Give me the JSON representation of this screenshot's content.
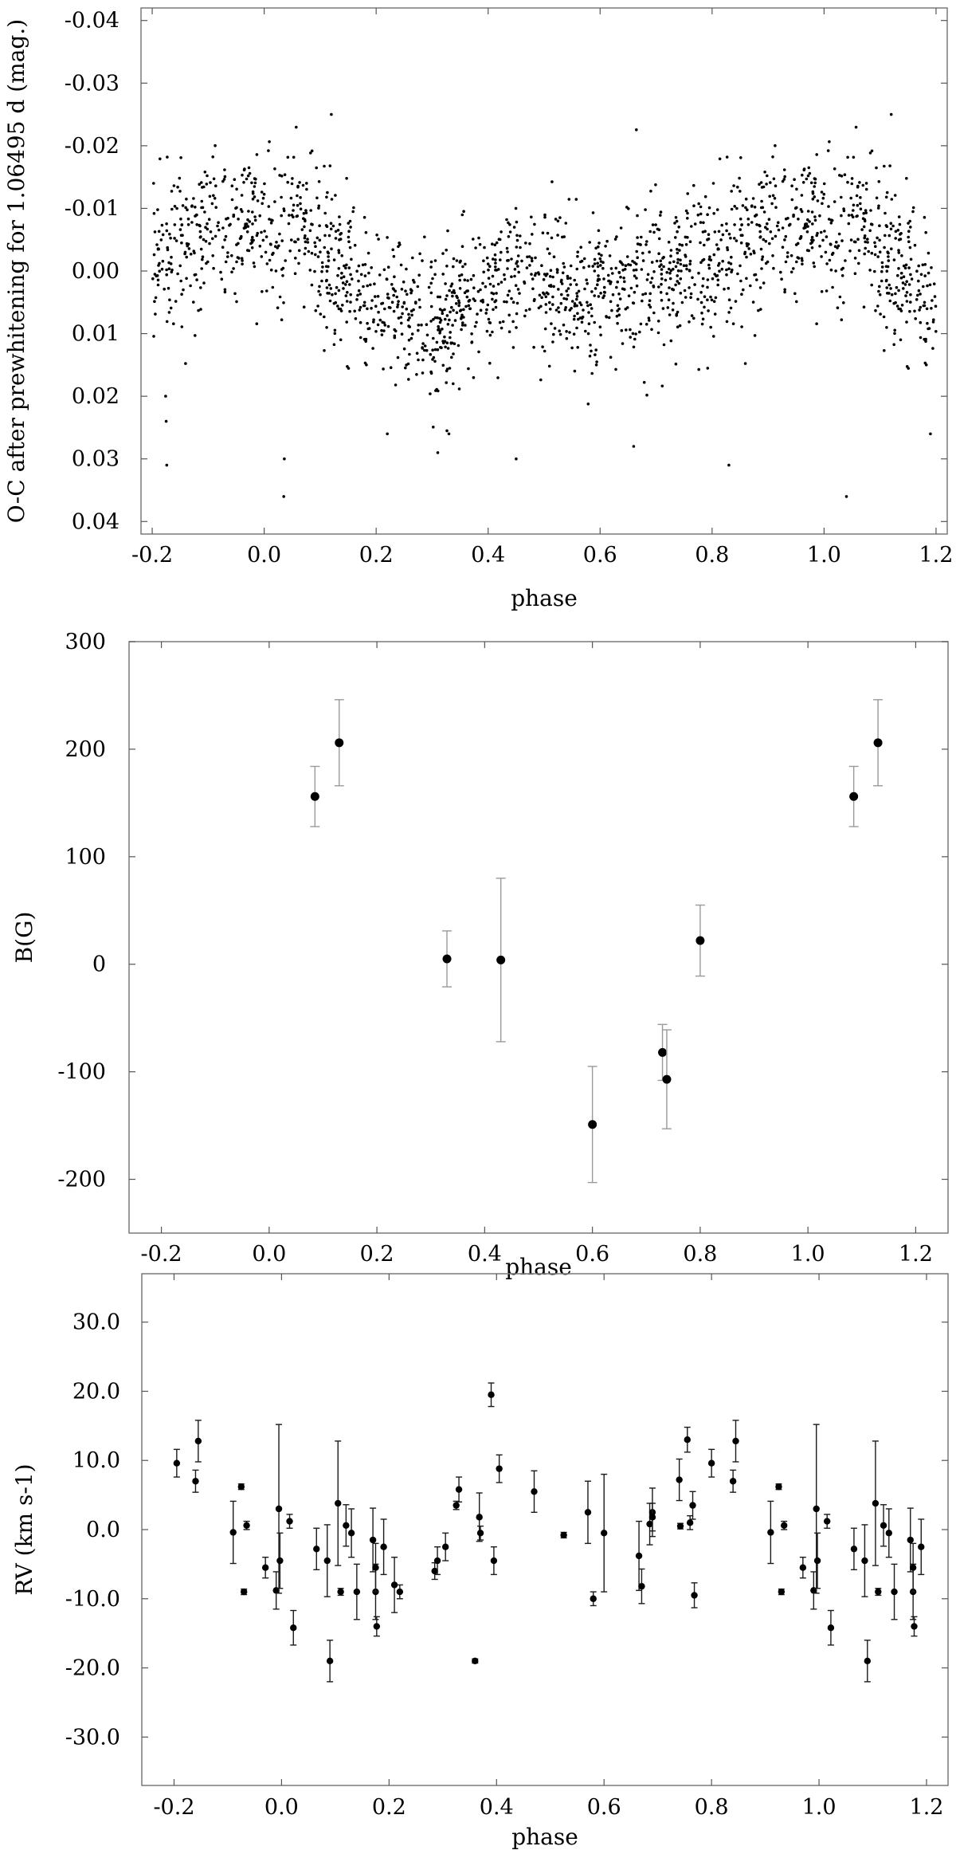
{
  "colors": {
    "points": "#000000",
    "frame": "#7a7a7a",
    "errorbar_gray": "#9a9a9a",
    "errorbar_dark": "#1a1a1a"
  },
  "chart_data": [
    {
      "type": "scatter",
      "xlabel": "phase",
      "ylabel": "O-C after prewhitening for 1.06495 d (mag.)",
      "xlim": [
        -0.22,
        1.22
      ],
      "ylim": [
        0.042,
        -0.042
      ],
      "y_inverted": true,
      "xticks": [
        -0.2,
        0.0,
        0.2,
        0.4,
        0.6,
        0.8,
        1.0,
        1.2
      ],
      "xtick_labels": [
        "-0.2",
        "0.0",
        "0.2",
        "0.4",
        "0.6",
        "0.8",
        "1.0",
        "1.2"
      ],
      "yticks": [
        -0.04,
        -0.03,
        -0.02,
        -0.01,
        0.0,
        0.01,
        0.02,
        0.03,
        0.04
      ],
      "ytick_labels": [
        "-0.04",
        "-0.03",
        "-0.02",
        "-0.01",
        "0.00",
        "0.01",
        "0.02",
        "0.03",
        "0.04"
      ],
      "grid": false,
      "phase_repeat": 1.0,
      "profile": [
        [
          0.0,
          -0.007
        ],
        [
          0.08,
          -0.006
        ],
        [
          0.18,
          0.004
        ],
        [
          0.3,
          0.009
        ],
        [
          0.4,
          0.003
        ],
        [
          0.45,
          -0.001
        ],
        [
          0.55,
          0.004
        ],
        [
          0.62,
          0.003
        ],
        [
          0.7,
          0.0
        ],
        [
          0.8,
          -0.002
        ],
        [
          0.86,
          -0.004
        ],
        [
          0.92,
          -0.008
        ],
        [
          1.0,
          -0.007
        ]
      ],
      "scatter_sigma": 0.0062,
      "n_points": 1400,
      "outliers": [
        [
          -0.174,
          0.031
        ],
        [
          -0.175,
          0.024
        ],
        [
          -0.176,
          0.02
        ],
        [
          0.035,
          0.036
        ],
        [
          0.036,
          0.03
        ],
        [
          0.12,
          -0.025
        ],
        [
          0.22,
          0.026
        ],
        [
          0.31,
          0.029
        ],
        [
          0.33,
          0.026
        ],
        [
          0.45,
          0.03
        ],
        [
          0.66,
          0.028
        ],
        [
          0.83,
          0.031
        ],
        [
          1.04,
          0.036
        ],
        [
          1.12,
          -0.025
        ],
        [
          1.19,
          0.026
        ]
      ]
    },
    {
      "type": "scatter",
      "xlabel": "phase",
      "ylabel": "B(G)",
      "xlim": [
        -0.26,
        1.26
      ],
      "ylim": [
        -250,
        300
      ],
      "xticks": [
        -0.2,
        0.0,
        0.2,
        0.4,
        0.6,
        0.8,
        1.0,
        1.2
      ],
      "xtick_labels": [
        "-0.2",
        "0.0",
        "0.2",
        "0.4",
        "0.6",
        "0.8",
        "1.0",
        "1.2"
      ],
      "yticks": [
        -200,
        -100,
        0,
        100,
        200,
        300
      ],
      "ytick_labels": [
        "-200",
        "-100",
        "0",
        "100",
        "200",
        "300"
      ],
      "grid": false,
      "points": [
        {
          "x": 0.085,
          "y": 156,
          "err": 28
        },
        {
          "x": 0.13,
          "y": 206,
          "err": 40
        },
        {
          "x": 0.33,
          "y": 5,
          "err": 26
        },
        {
          "x": 0.43,
          "y": 4,
          "err": 76
        },
        {
          "x": 0.6,
          "y": -149,
          "err": 54
        },
        {
          "x": 0.73,
          "y": -82,
          "err": 26
        },
        {
          "x": 0.738,
          "y": -107,
          "err": 46
        },
        {
          "x": 0.8,
          "y": 22,
          "err": 33
        },
        {
          "x": 1.085,
          "y": 156,
          "err": 28
        },
        {
          "x": 1.13,
          "y": 206,
          "err": 40
        }
      ]
    },
    {
      "type": "scatter",
      "xlabel": "phase",
      "ylabel": "RV (km s-1)",
      "xlim": [
        -0.26,
        1.24
      ],
      "ylim": [
        -37,
        37
      ],
      "xticks": [
        -0.2,
        0.0,
        0.2,
        0.4,
        0.6,
        0.8,
        1.0,
        1.2
      ],
      "xtick_labels": [
        "-0.2",
        "0.0",
        "0.2",
        "0.4",
        "0.6",
        "0.8",
        "1.0",
        "1.2"
      ],
      "yticks": [
        -30,
        -20,
        -10,
        0,
        10,
        20,
        30
      ],
      "ytick_labels": [
        "-30.0",
        "-20.0",
        "-10.0",
        "0.0",
        "10.0",
        "20.0",
        "30.0"
      ],
      "grid": false,
      "points": [
        {
          "x": -0.195,
          "y": 9.6,
          "err": 2.0
        },
        {
          "x": -0.16,
          "y": 7.0,
          "err": 1.6
        },
        {
          "x": -0.155,
          "y": 12.8,
          "err": 3.0
        },
        {
          "x": -0.09,
          "y": -0.4,
          "err": 4.5
        },
        {
          "x": -0.075,
          "y": 6.2,
          "err": 0.4
        },
        {
          "x": -0.07,
          "y": -9.0,
          "err": 0.4
        },
        {
          "x": -0.065,
          "y": 0.6,
          "err": 0.6
        },
        {
          "x": -0.03,
          "y": -5.5,
          "err": 1.5
        },
        {
          "x": -0.01,
          "y": -8.8,
          "err": 2.7
        },
        {
          "x": -0.005,
          "y": 3.0,
          "err": 12.2
        },
        {
          "x": -0.003,
          "y": -4.5,
          "err": 4.0
        },
        {
          "x": 0.015,
          "y": 1.2,
          "err": 1.0
        },
        {
          "x": 0.022,
          "y": -14.2,
          "err": 2.5
        },
        {
          "x": 0.065,
          "y": -2.8,
          "err": 3.0
        },
        {
          "x": 0.085,
          "y": -4.5,
          "err": 5.2
        },
        {
          "x": 0.09,
          "y": -19.0,
          "err": 3.0
        },
        {
          "x": 0.105,
          "y": 3.8,
          "err": 9.0
        },
        {
          "x": 0.11,
          "y": -9.0,
          "err": 0.5
        },
        {
          "x": 0.12,
          "y": 0.6,
          "err": 3.0
        },
        {
          "x": 0.13,
          "y": -0.5,
          "err": 3.5
        },
        {
          "x": 0.14,
          "y": -9.0,
          "err": 4.0
        },
        {
          "x": 0.17,
          "y": -1.5,
          "err": 4.6
        },
        {
          "x": 0.175,
          "y": -9.0,
          "err": 4.0
        },
        {
          "x": 0.175,
          "y": -5.5,
          "err": 3.5
        },
        {
          "x": 0.177,
          "y": -14.0,
          "err": 1.4
        },
        {
          "x": 0.19,
          "y": -2.5,
          "err": 4.0
        },
        {
          "x": 0.21,
          "y": -8.0,
          "err": 4.0
        },
        {
          "x": 0.22,
          "y": -9.0,
          "err": 1.0
        },
        {
          "x": 0.285,
          "y": -6.0,
          "err": 1.2
        },
        {
          "x": 0.29,
          "y": -4.5,
          "err": 2.0
        },
        {
          "x": 0.305,
          "y": -2.5,
          "err": 2.0
        },
        {
          "x": 0.325,
          "y": 3.5,
          "err": 0.6
        },
        {
          "x": 0.33,
          "y": 5.8,
          "err": 1.8
        },
        {
          "x": 0.36,
          "y": -19.0,
          "err": 0.3
        },
        {
          "x": 0.368,
          "y": 1.8,
          "err": 3.5
        },
        {
          "x": 0.37,
          "y": -0.5,
          "err": 1.0
        },
        {
          "x": 0.39,
          "y": 19.5,
          "err": 1.7
        },
        {
          "x": 0.395,
          "y": -4.5,
          "err": 2.0
        },
        {
          "x": 0.405,
          "y": 8.8,
          "err": 2.0
        },
        {
          "x": 0.47,
          "y": 5.5,
          "err": 3.0
        },
        {
          "x": 0.525,
          "y": -0.8,
          "err": 0.4
        },
        {
          "x": 0.57,
          "y": 2.5,
          "err": 4.5
        },
        {
          "x": 0.58,
          "y": -10.0,
          "err": 1.0
        },
        {
          "x": 0.6,
          "y": -0.5,
          "err": 8.5
        },
        {
          "x": 0.665,
          "y": -3.8,
          "err": 5.0
        },
        {
          "x": 0.67,
          "y": -8.2,
          "err": 2.5
        },
        {
          "x": 0.685,
          "y": 0.8,
          "err": 3.0
        },
        {
          "x": 0.69,
          "y": 2.5,
          "err": 3.5
        },
        {
          "x": 0.69,
          "y": 1.8,
          "err": 2.0
        },
        {
          "x": 0.74,
          "y": 7.2,
          "err": 3.0
        },
        {
          "x": 0.742,
          "y": 0.5,
          "err": 0.4
        },
        {
          "x": 0.755,
          "y": 13.0,
          "err": 1.8
        },
        {
          "x": 0.76,
          "y": 1.0,
          "err": 1.0
        },
        {
          "x": 0.765,
          "y": 3.5,
          "err": 2.0
        },
        {
          "x": 0.768,
          "y": -9.5,
          "err": 1.8
        },
        {
          "x": 0.8,
          "y": 9.6,
          "err": 2.0
        },
        {
          "x": 0.84,
          "y": 7.0,
          "err": 1.6
        },
        {
          "x": 0.845,
          "y": 12.8,
          "err": 3.0
        },
        {
          "x": 0.91,
          "y": -0.4,
          "err": 4.5
        },
        {
          "x": 0.925,
          "y": 6.2,
          "err": 0.4
        },
        {
          "x": 0.93,
          "y": -9.0,
          "err": 0.4
        },
        {
          "x": 0.935,
          "y": 0.6,
          "err": 0.6
        },
        {
          "x": 0.97,
          "y": -5.5,
          "err": 1.5
        },
        {
          "x": 0.99,
          "y": -8.8,
          "err": 2.7
        },
        {
          "x": 0.995,
          "y": 3.0,
          "err": 12.2
        },
        {
          "x": 0.997,
          "y": -4.5,
          "err": 4.0
        },
        {
          "x": 1.015,
          "y": 1.2,
          "err": 1.0
        },
        {
          "x": 1.022,
          "y": -14.2,
          "err": 2.5
        },
        {
          "x": 1.065,
          "y": -2.8,
          "err": 3.0
        },
        {
          "x": 1.085,
          "y": -4.5,
          "err": 5.2
        },
        {
          "x": 1.09,
          "y": -19.0,
          "err": 3.0
        },
        {
          "x": 1.105,
          "y": 3.8,
          "err": 9.0
        },
        {
          "x": 1.11,
          "y": -9.0,
          "err": 0.5
        },
        {
          "x": 1.12,
          "y": 0.6,
          "err": 3.0
        },
        {
          "x": 1.13,
          "y": -0.5,
          "err": 3.5
        },
        {
          "x": 1.14,
          "y": -9.0,
          "err": 4.0
        },
        {
          "x": 1.17,
          "y": -1.5,
          "err": 4.6
        },
        {
          "x": 1.175,
          "y": -9.0,
          "err": 4.0
        },
        {
          "x": 1.175,
          "y": -5.5,
          "err": 3.5
        },
        {
          "x": 1.177,
          "y": -14.0,
          "err": 1.4
        },
        {
          "x": 1.19,
          "y": -2.5,
          "err": 4.0
        }
      ]
    }
  ]
}
